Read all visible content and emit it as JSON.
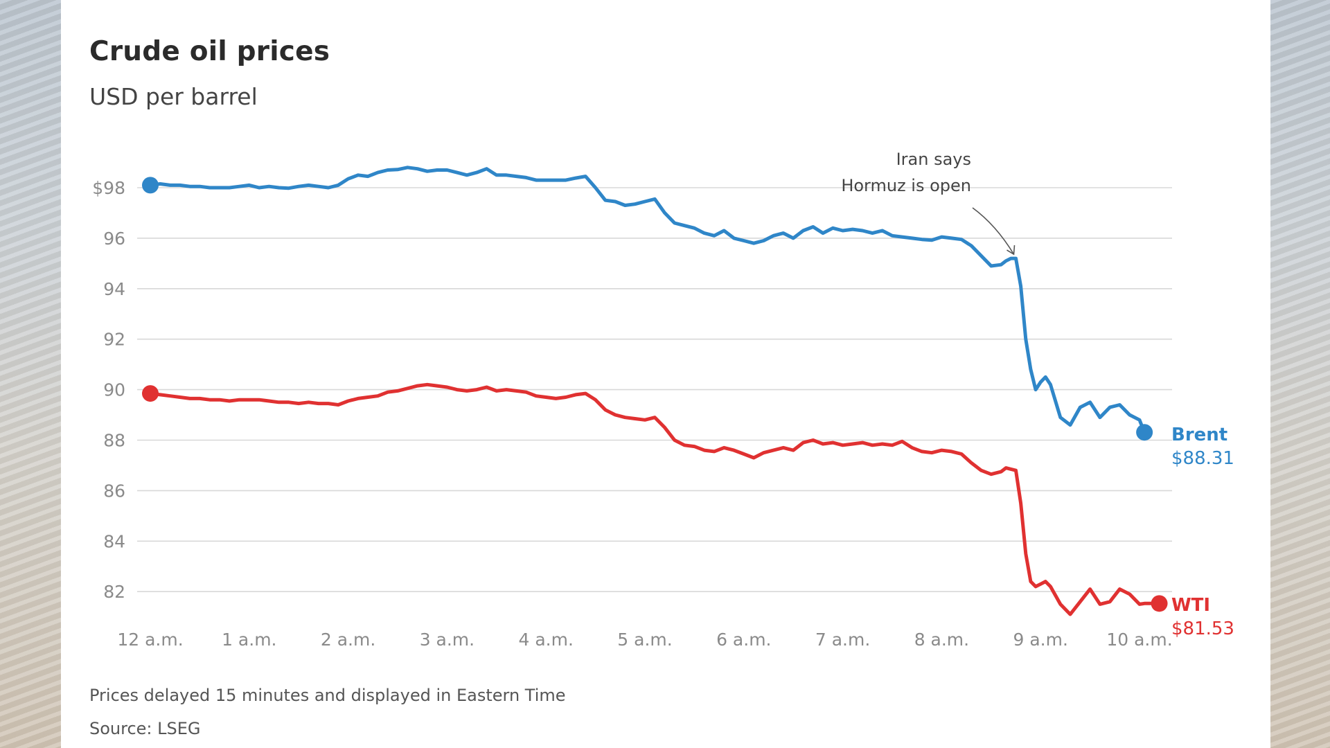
{
  "colors": {
    "brent": "#2f86c8",
    "wti": "#e03131",
    "grid": "#d8d8d8",
    "tick": "#8a8a8a"
  },
  "chart_data": {
    "type": "line",
    "title": "Crude oil prices",
    "subtitle": "USD per barrel",
    "ylim": [
      80.5,
      99.5
    ],
    "xlim": [
      0,
      10.2
    ],
    "y_ticks": [
      {
        "value": 98,
        "label": "$98"
      },
      {
        "value": 96,
        "label": "96"
      },
      {
        "value": 94,
        "label": "94"
      },
      {
        "value": 92,
        "label": "92"
      },
      {
        "value": 90,
        "label": "90"
      },
      {
        "value": 88,
        "label": "88"
      },
      {
        "value": 86,
        "label": "86"
      },
      {
        "value": 84,
        "label": "84"
      },
      {
        "value": 82,
        "label": "82"
      }
    ],
    "x_ticks": [
      {
        "value": 0,
        "label": "12 a.m."
      },
      {
        "value": 1,
        "label": "1 a.m."
      },
      {
        "value": 2,
        "label": "2 a.m."
      },
      {
        "value": 3,
        "label": "3 a.m."
      },
      {
        "value": 4,
        "label": "4 a.m."
      },
      {
        "value": 5,
        "label": "5 a.m."
      },
      {
        "value": 6,
        "label": "6 a.m."
      },
      {
        "value": 7,
        "label": "7 a.m."
      },
      {
        "value": 8,
        "label": "8 a.m."
      },
      {
        "value": 9,
        "label": "9 a.m."
      },
      {
        "value": 10,
        "label": "10 a.m."
      }
    ],
    "series": [
      {
        "name": "Brent",
        "end_label": "$88.31",
        "x": [
          0,
          0.1,
          0.2,
          0.3,
          0.4,
          0.5,
          0.6,
          0.7,
          0.8,
          0.9,
          1.0,
          1.1,
          1.2,
          1.3,
          1.4,
          1.5,
          1.6,
          1.7,
          1.8,
          1.9,
          2.0,
          2.1,
          2.2,
          2.3,
          2.4,
          2.5,
          2.6,
          2.7,
          2.8,
          2.9,
          3.0,
          3.1,
          3.2,
          3.3,
          3.4,
          3.5,
          3.6,
          3.7,
          3.8,
          3.9,
          4.0,
          4.1,
          4.2,
          4.3,
          4.4,
          4.5,
          4.6,
          4.7,
          4.8,
          4.9,
          5.0,
          5.1,
          5.2,
          5.3,
          5.4,
          5.5,
          5.6,
          5.7,
          5.8,
          5.9,
          6.0,
          6.1,
          6.2,
          6.3,
          6.4,
          6.5,
          6.6,
          6.7,
          6.8,
          6.9,
          7.0,
          7.1,
          7.2,
          7.3,
          7.4,
          7.5,
          7.6,
          7.7,
          7.8,
          7.9,
          8.0,
          8.1,
          8.2,
          8.3,
          8.4,
          8.5,
          8.6,
          8.65,
          8.7,
          8.75,
          8.8,
          8.85,
          8.9,
          8.95,
          9.0,
          9.05,
          9.1,
          9.2,
          9.3,
          9.4,
          9.5,
          9.6,
          9.7,
          9.8,
          9.9,
          10.0,
          10.05
        ],
        "y": [
          98.1,
          98.15,
          98.1,
          98.1,
          98.05,
          98.05,
          98.0,
          98.0,
          98.0,
          98.05,
          98.1,
          98.0,
          98.05,
          98.0,
          97.98,
          98.05,
          98.1,
          98.05,
          98.0,
          98.1,
          98.35,
          98.5,
          98.45,
          98.6,
          98.7,
          98.72,
          98.8,
          98.75,
          98.65,
          98.7,
          98.7,
          98.6,
          98.5,
          98.6,
          98.75,
          98.5,
          98.5,
          98.45,
          98.4,
          98.3,
          98.3,
          98.3,
          98.3,
          98.38,
          98.45,
          98.0,
          97.5,
          97.45,
          97.3,
          97.35,
          97.45,
          97.55,
          97.0,
          96.6,
          96.5,
          96.4,
          96.2,
          96.1,
          96.3,
          96.0,
          95.9,
          95.8,
          95.9,
          96.1,
          96.2,
          96.0,
          96.3,
          96.45,
          96.2,
          96.4,
          96.3,
          96.35,
          96.3,
          96.2,
          96.3,
          96.1,
          96.05,
          96.0,
          95.95,
          95.92,
          96.05,
          96.0,
          95.95,
          95.7,
          95.3,
          94.9,
          94.95,
          95.1,
          95.2,
          95.2,
          94.1,
          92.0,
          90.8,
          90.0,
          90.3,
          90.5,
          90.2,
          88.9,
          88.6,
          89.3,
          89.5,
          88.9,
          89.3,
          89.4,
          89.0,
          88.8,
          88.31
        ]
      },
      {
        "name": "WTI",
        "end_label": "$81.53",
        "x": [
          0,
          0.1,
          0.2,
          0.3,
          0.4,
          0.5,
          0.6,
          0.7,
          0.8,
          0.9,
          1.0,
          1.1,
          1.2,
          1.3,
          1.4,
          1.5,
          1.6,
          1.7,
          1.8,
          1.9,
          2.0,
          2.1,
          2.2,
          2.3,
          2.4,
          2.5,
          2.6,
          2.7,
          2.8,
          2.9,
          3.0,
          3.1,
          3.2,
          3.3,
          3.4,
          3.5,
          3.6,
          3.7,
          3.8,
          3.9,
          4.0,
          4.1,
          4.2,
          4.3,
          4.4,
          4.5,
          4.6,
          4.7,
          4.8,
          4.9,
          5.0,
          5.1,
          5.2,
          5.3,
          5.4,
          5.5,
          5.6,
          5.7,
          5.8,
          5.9,
          6.0,
          6.1,
          6.2,
          6.3,
          6.4,
          6.5,
          6.6,
          6.7,
          6.8,
          6.9,
          7.0,
          7.1,
          7.2,
          7.3,
          7.4,
          7.5,
          7.6,
          7.7,
          7.8,
          7.9,
          8.0,
          8.1,
          8.2,
          8.3,
          8.4,
          8.5,
          8.6,
          8.65,
          8.7,
          8.75,
          8.8,
          8.85,
          8.9,
          8.95,
          9.0,
          9.05,
          9.1,
          9.2,
          9.3,
          9.4,
          9.5,
          9.6,
          9.7,
          9.8,
          9.9,
          10.0,
          10.05,
          10.2
        ],
        "y": [
          89.85,
          89.8,
          89.75,
          89.7,
          89.65,
          89.65,
          89.6,
          89.6,
          89.55,
          89.6,
          89.6,
          89.6,
          89.55,
          89.5,
          89.5,
          89.45,
          89.5,
          89.45,
          89.45,
          89.4,
          89.55,
          89.65,
          89.7,
          89.75,
          89.9,
          89.95,
          90.05,
          90.15,
          90.2,
          90.15,
          90.1,
          90.0,
          89.95,
          90.0,
          90.1,
          89.95,
          90.0,
          89.95,
          89.9,
          89.75,
          89.7,
          89.65,
          89.7,
          89.8,
          89.85,
          89.6,
          89.2,
          89.0,
          88.9,
          88.85,
          88.8,
          88.9,
          88.5,
          88.0,
          87.8,
          87.75,
          87.6,
          87.55,
          87.7,
          87.6,
          87.45,
          87.3,
          87.5,
          87.6,
          87.7,
          87.6,
          87.9,
          88.0,
          87.85,
          87.9,
          87.8,
          87.85,
          87.9,
          87.8,
          87.85,
          87.8,
          87.95,
          87.7,
          87.55,
          87.5,
          87.6,
          87.55,
          87.45,
          87.1,
          86.8,
          86.65,
          86.75,
          86.9,
          86.85,
          86.8,
          85.5,
          83.5,
          82.4,
          82.2,
          82.3,
          82.4,
          82.2,
          81.5,
          81.1,
          81.6,
          82.1,
          81.5,
          81.6,
          82.1,
          81.9,
          81.5,
          81.53,
          81.53
        ]
      }
    ],
    "annotation": {
      "line1": "Iran says",
      "line2": "Hormuz is open",
      "x": 8.75,
      "y": 95.2
    },
    "footnote": "Prices delayed 15 minutes and displayed in Eastern Time",
    "source": "Source: LSEG"
  }
}
